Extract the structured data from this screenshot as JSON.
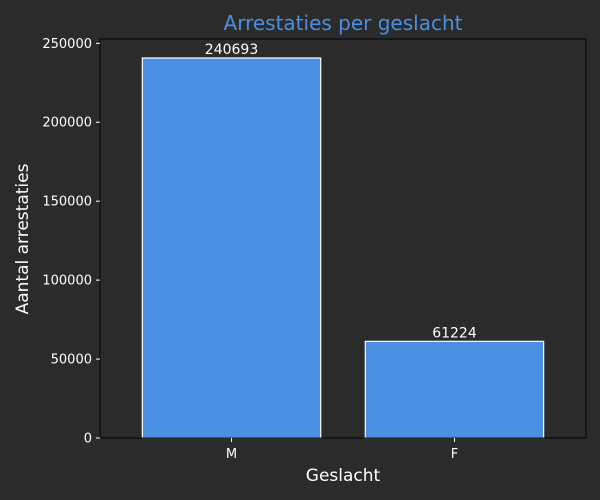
{
  "chart_data": {
    "type": "bar",
    "title": "Arrestaties per geslacht",
    "xlabel": "Geslacht",
    "ylabel": "Aantal arrestaties",
    "categories": [
      "M",
      "F"
    ],
    "values": [
      240693,
      61224
    ],
    "data_labels": [
      "240693",
      "61224"
    ],
    "ylim": [
      0,
      252727.65
    ],
    "yticks": [
      0,
      50000,
      100000,
      150000,
      200000,
      250000
    ],
    "ytick_labels": [
      "0",
      "50000",
      "100000",
      "150000",
      "200000",
      "250000"
    ],
    "grid": false,
    "legend": "none"
  },
  "colors": {
    "background": "#2b2b2b",
    "bar_fill": "#4a90e2",
    "bar_edge": "#ffffff",
    "title": "#4a90e2",
    "text": "#ffffff",
    "axis": "#000000"
  }
}
